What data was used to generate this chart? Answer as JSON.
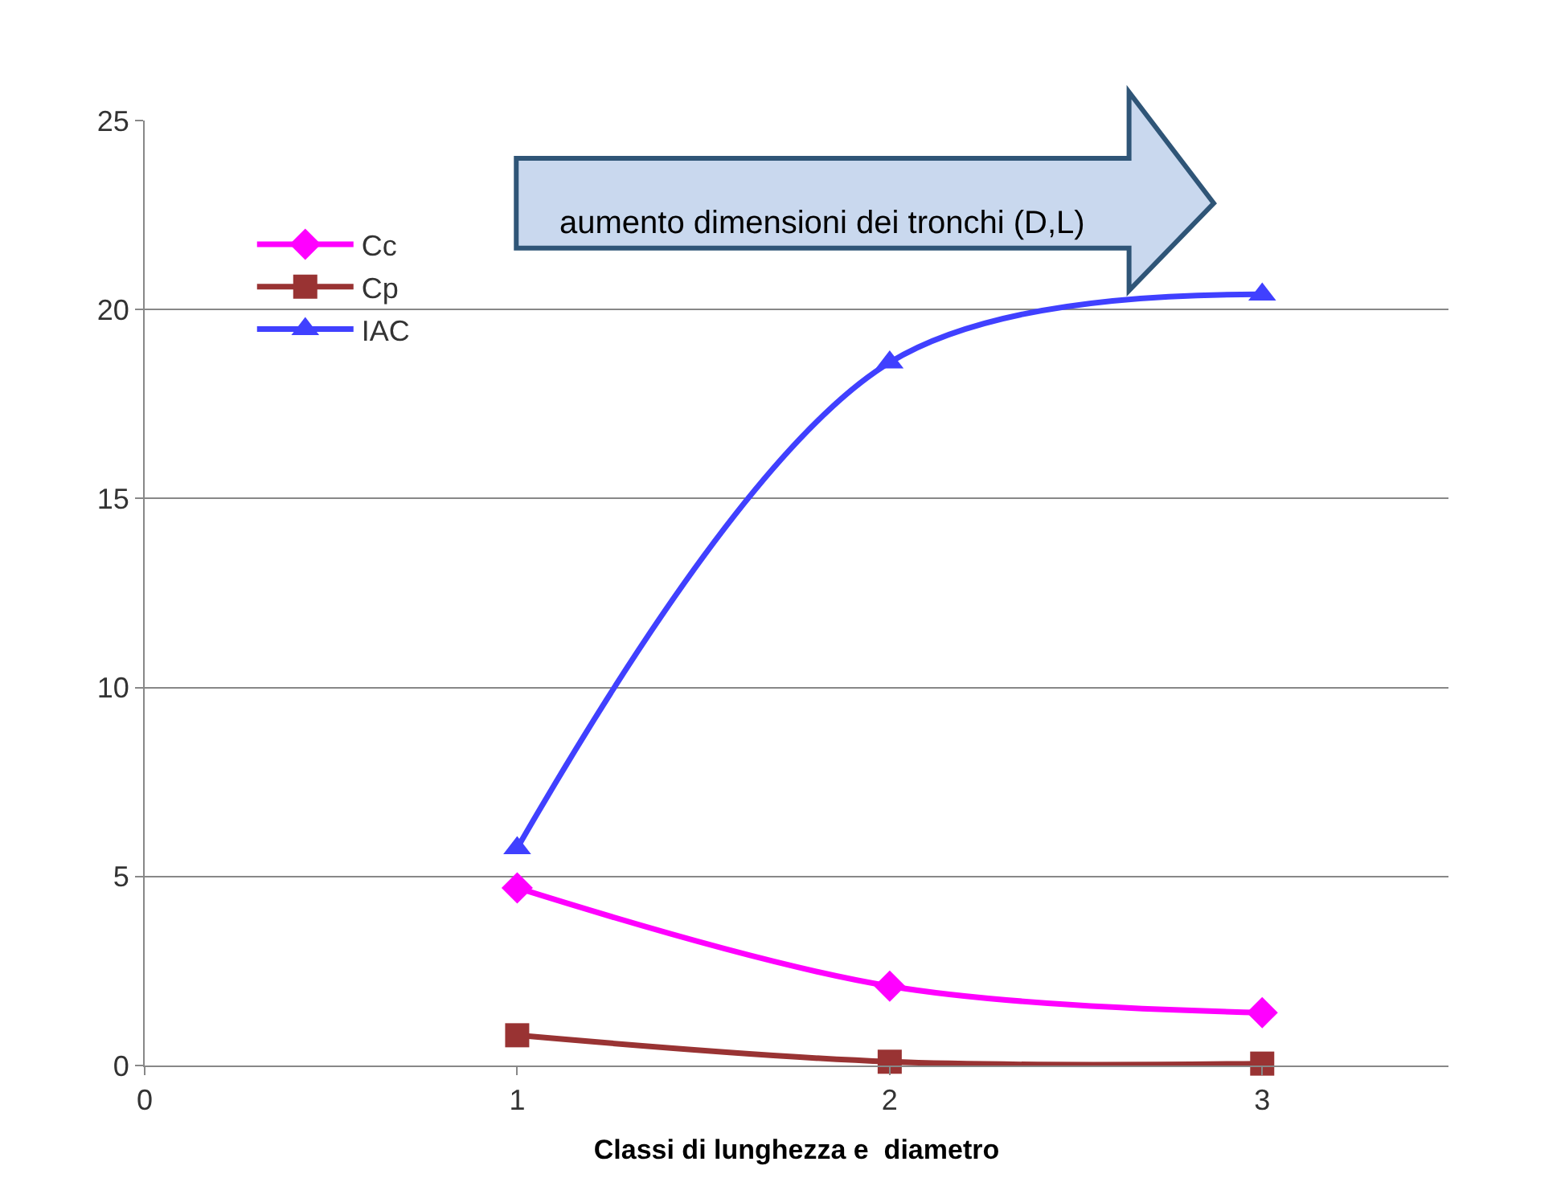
{
  "chart_data": {
    "type": "line",
    "xlabel": "Classi di lunghezza e  diametro",
    "x": [
      1,
      2,
      3
    ],
    "series": [
      {
        "name": "Cc",
        "color": "#ff00ff",
        "marker": "diamond",
        "values": [
          4.7,
          2.1,
          1.4
        ]
      },
      {
        "name": "Cp",
        "color": "#993333",
        "marker": "square",
        "values": [
          0.8,
          0.1,
          0.05
        ]
      },
      {
        "name": "IAC",
        "color": "#4040ff",
        "marker": "triangle",
        "values": [
          5.75,
          18.6,
          20.4
        ]
      }
    ],
    "xlim": [
      0,
      3.5
    ],
    "xticks": [
      0,
      1,
      2,
      3
    ],
    "ylim": [
      0,
      25
    ],
    "yticks": [
      0,
      5,
      10,
      15,
      20,
      25
    ],
    "grid": "y",
    "legend": "top left",
    "annotations": [
      "aumento dimensioni dei tronchi (D,L)"
    ]
  }
}
